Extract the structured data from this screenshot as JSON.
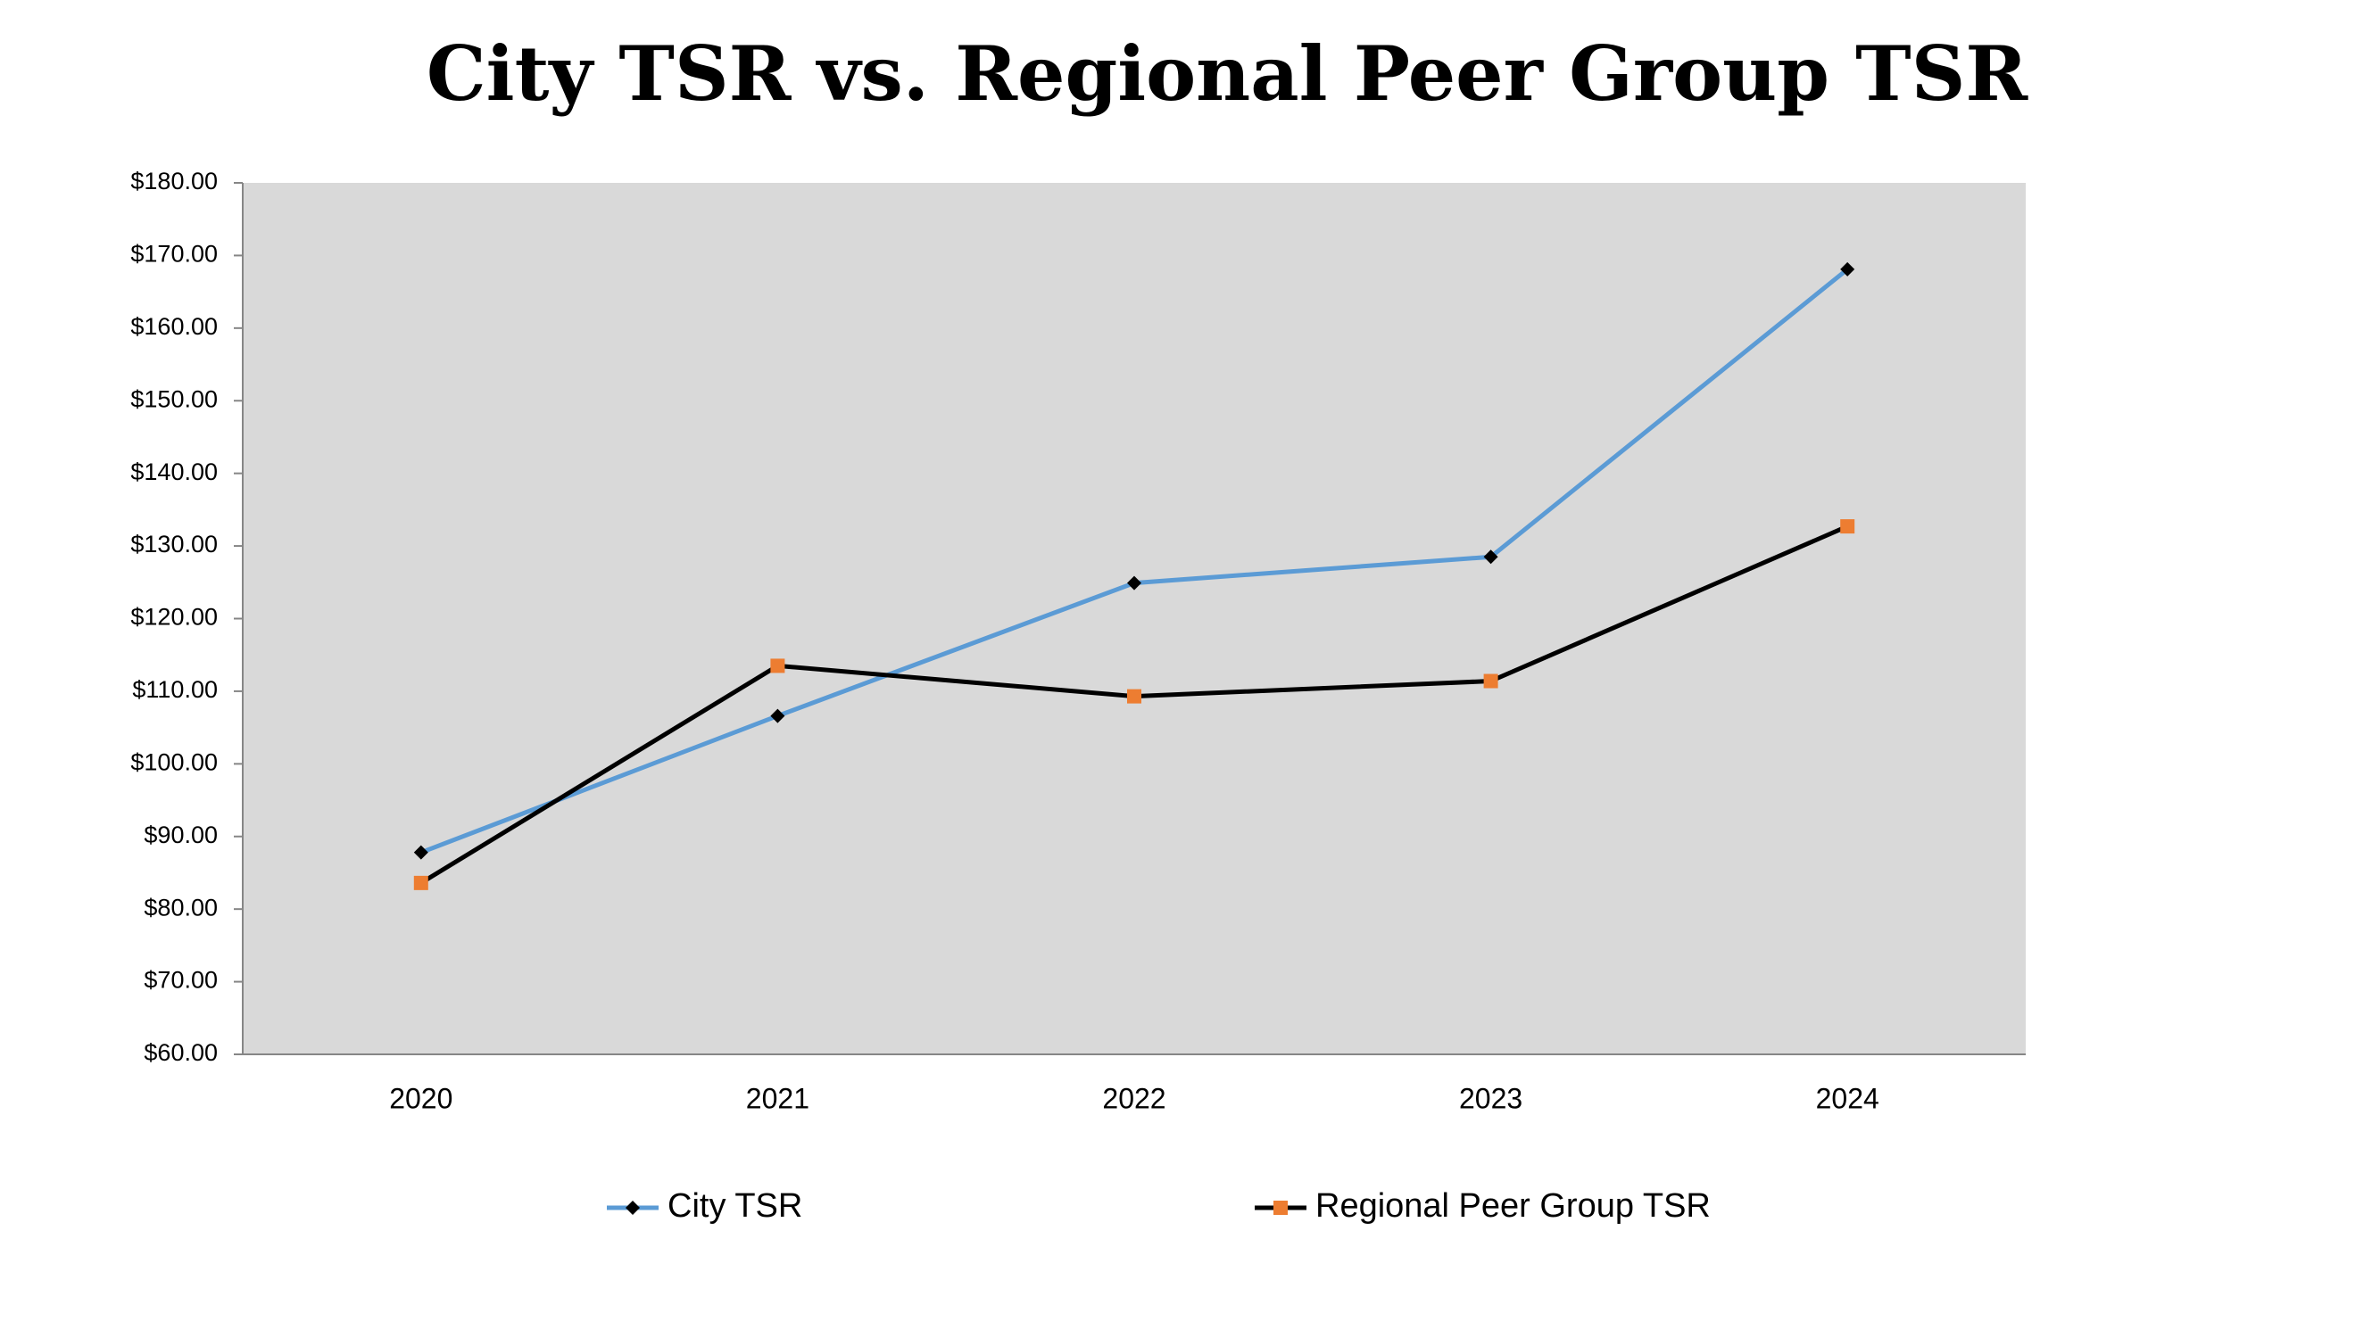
{
  "chart_data": {
    "type": "line",
    "title": "City TSR vs. Regional Peer Group TSR",
    "categories": [
      "2020",
      "2021",
      "2022",
      "2023",
      "2024"
    ],
    "series": [
      {
        "name": "City TSR",
        "color": "#5b9bd5",
        "marker_color": "#000000",
        "marker": "diamond",
        "values": [
          87.8,
          106.6,
          124.9,
          128.5,
          168.1
        ]
      },
      {
        "name": "Regional Peer Group TSR",
        "color": "#000000",
        "marker_color": "#ed7d31",
        "marker": "square",
        "values": [
          83.6,
          113.5,
          109.3,
          111.4,
          132.7
        ]
      }
    ],
    "ylim": [
      60,
      180
    ],
    "yticks": [
      {
        "value": 60,
        "label": "$60.00"
      },
      {
        "value": 70,
        "label": "$70.00"
      },
      {
        "value": 80,
        "label": "$80.00"
      },
      {
        "value": 90,
        "label": "$90.00"
      },
      {
        "value": 100,
        "label": "$100.00"
      },
      {
        "value": 110,
        "label": "$110.00"
      },
      {
        "value": 120,
        "label": "$120.00"
      },
      {
        "value": 130,
        "label": "$130.00"
      },
      {
        "value": 140,
        "label": "$140.00"
      },
      {
        "value": 150,
        "label": "$150.00"
      },
      {
        "value": 160,
        "label": "$160.00"
      },
      {
        "value": 170,
        "label": "$170.00"
      },
      {
        "value": 180,
        "label": "$180.00"
      }
    ],
    "plot_background": "#d9d9d9",
    "legend": "bottom"
  }
}
